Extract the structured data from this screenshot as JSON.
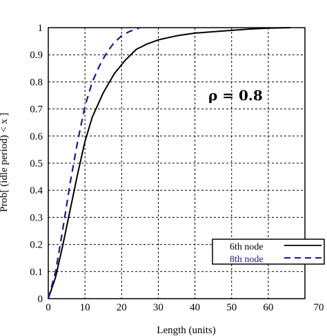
{
  "chart_data": {
    "type": "line",
    "xlabel": "Length (units)",
    "ylabel": "Prob[ (idle period) < x ]",
    "xlim": [
      0,
      70
    ],
    "ylim": [
      0,
      1
    ],
    "x_ticks": [
      "0",
      "10",
      "20",
      "30",
      "40",
      "50",
      "60",
      "70"
    ],
    "y_ticks": [
      "0",
      "0.1",
      "0.2",
      "0.3",
      "0.4",
      "0.5",
      "0.6",
      "0.7",
      "0.8",
      "0.9",
      "1"
    ],
    "grid": true,
    "legend_position": "bottom-right",
    "annotation": "ρ = 0.8",
    "series": [
      {
        "name": "6th node",
        "color": "#000000",
        "style": "solid",
        "points": [
          [
            0,
            0
          ],
          [
            2,
            0.08
          ],
          [
            4,
            0.2
          ],
          [
            6,
            0.33
          ],
          [
            8,
            0.46
          ],
          [
            10,
            0.58
          ],
          [
            12,
            0.67
          ],
          [
            15,
            0.76
          ],
          [
            18,
            0.83
          ],
          [
            21,
            0.88
          ],
          [
            24,
            0.92
          ],
          [
            27,
            0.94
          ],
          [
            30,
            0.955
          ],
          [
            35,
            0.97
          ],
          [
            40,
            0.98
          ],
          [
            45,
            0.985
          ],
          [
            50,
            0.99
          ],
          [
            55,
            0.995
          ],
          [
            60,
            0.998
          ],
          [
            66,
            1.0
          ]
        ]
      },
      {
        "name": "8th node",
        "color": "#1a1a8c",
        "style": "dashed",
        "points": [
          [
            0,
            0
          ],
          [
            2,
            0.1
          ],
          [
            4,
            0.26
          ],
          [
            6,
            0.43
          ],
          [
            8,
            0.58
          ],
          [
            10,
            0.71
          ],
          [
            12,
            0.8
          ],
          [
            14,
            0.86
          ],
          [
            16,
            0.91
          ],
          [
            18,
            0.945
          ],
          [
            20,
            0.97
          ],
          [
            22,
            0.985
          ],
          [
            25,
            1.0
          ]
        ]
      }
    ]
  }
}
